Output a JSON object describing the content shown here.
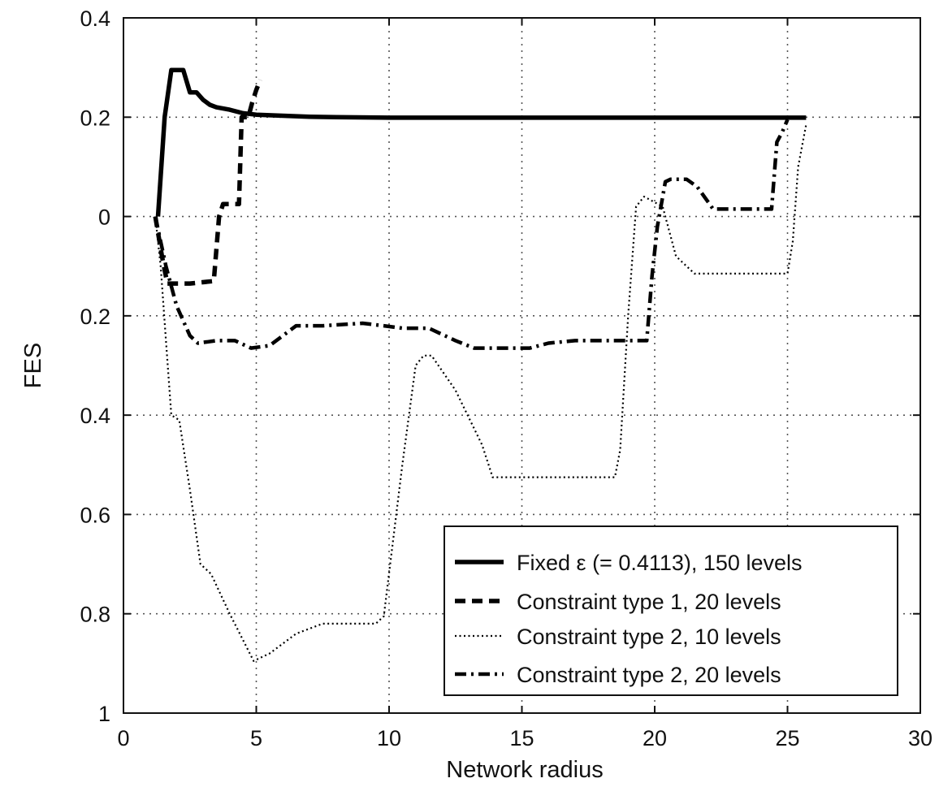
{
  "chart_data": {
    "type": "line",
    "title": "",
    "xlabel": "Network radius",
    "ylabel": "FES",
    "xlim": [
      0,
      30
    ],
    "ylim": [
      1,
      0.4
    ],
    "x_ticks": [
      0,
      5,
      10,
      15,
      20,
      25,
      30
    ],
    "x_tick_labels": [
      "0",
      "5",
      "10",
      "15",
      "20",
      "25",
      "30"
    ],
    "y_ticks": [
      0.4,
      0.2,
      0,
      -0.2,
      -0.4,
      -0.6,
      -0.8,
      -1
    ],
    "y_tick_labels": [
      "0.4",
      "0.2",
      "0",
      "0.2",
      "0.4",
      "0.6",
      "0.8",
      "1"
    ],
    "grid": true,
    "legend_position": "bottom-right",
    "series": [
      {
        "name": "Fixed ε (= 0.4113), 150 levels",
        "style": "solid",
        "color": "#000000",
        "x": [
          1.3,
          1.55,
          1.8,
          2.0,
          2.25,
          2.5,
          2.75,
          3.0,
          3.25,
          3.5,
          4.0,
          4.5,
          5.0,
          6,
          7,
          8,
          10,
          12,
          15,
          20,
          25,
          25.7
        ],
        "y": [
          0,
          0.2,
          0.295,
          0.295,
          0.295,
          0.25,
          0.25,
          0.235,
          0.225,
          0.22,
          0.215,
          0.208,
          0.205,
          0.203,
          0.201,
          0.2,
          0.199,
          0.199,
          0.199,
          0.199,
          0.199,
          0.199
        ]
      },
      {
        "name": "Constraint type 1, 20 levels",
        "style": "dashed",
        "color": "#000000",
        "x": [
          1.2,
          1.45,
          1.65,
          2.5,
          3.4,
          3.6,
          3.75,
          4.1,
          4.35,
          4.45,
          4.7,
          4.85,
          5.0,
          5.15
        ],
        "y": [
          0,
          -0.08,
          -0.135,
          -0.135,
          -0.13,
          0.0,
          0.025,
          0.025,
          0.025,
          0.2,
          0.2,
          0.23,
          0.255,
          0.275
        ]
      },
      {
        "name": "Constraint type 2, 10 levels",
        "style": "dotted",
        "color": "#000000",
        "x": [
          1.2,
          1.4,
          1.6,
          1.8,
          2.1,
          2.5,
          2.9,
          3.3,
          4.0,
          4.9,
          5.5,
          6.5,
          7.5,
          8.5,
          9.5,
          9.8,
          10.5,
          11,
          11.3,
          11.6,
          12.5,
          13.5,
          13.9,
          18.5,
          18.7,
          19.0,
          19.3,
          19.6,
          20.3,
          20.8,
          21.5,
          23,
          25,
          25.2,
          25.4,
          25.7
        ],
        "y": [
          0,
          -0.1,
          -0.25,
          -0.4,
          -0.41,
          -0.55,
          -0.7,
          -0.72,
          -0.8,
          -0.895,
          -0.88,
          -0.84,
          -0.82,
          -0.82,
          -0.82,
          -0.805,
          -0.5,
          -0.3,
          -0.28,
          -0.28,
          -0.35,
          -0.46,
          -0.525,
          -0.525,
          -0.47,
          -0.2,
          0.02,
          0.04,
          0.02,
          -0.08,
          -0.115,
          -0.115,
          -0.115,
          -0.05,
          0.1,
          0.185
        ]
      },
      {
        "name": "Constraint type 2, 20 levels",
        "style": "dashdot",
        "color": "#000000",
        "x": [
          1.2,
          1.6,
          2.0,
          2.5,
          2.8,
          3.5,
          4.2,
          4.8,
          5.5,
          6.0,
          6.5,
          7.5,
          9.0,
          9.8,
          10.5,
          11.5,
          12.5,
          13.2,
          14.5,
          15.3,
          16.0,
          17,
          18.5,
          19.7,
          19.9,
          20.1,
          20.4,
          20.6,
          21.2,
          21.6,
          22.2,
          23,
          24.2,
          24.4,
          24.6,
          24.8,
          25.0
        ],
        "y": [
          0,
          -0.1,
          -0.18,
          -0.24,
          -0.255,
          -0.25,
          -0.25,
          -0.265,
          -0.26,
          -0.24,
          -0.22,
          -0.22,
          -0.215,
          -0.22,
          -0.225,
          -0.225,
          -0.25,
          -0.265,
          -0.265,
          -0.265,
          -0.255,
          -0.25,
          -0.25,
          -0.25,
          -0.12,
          -0.02,
          0.07,
          0.075,
          0.075,
          0.06,
          0.015,
          0.015,
          0.015,
          0.015,
          0.15,
          0.17,
          0.195
        ]
      }
    ]
  }
}
